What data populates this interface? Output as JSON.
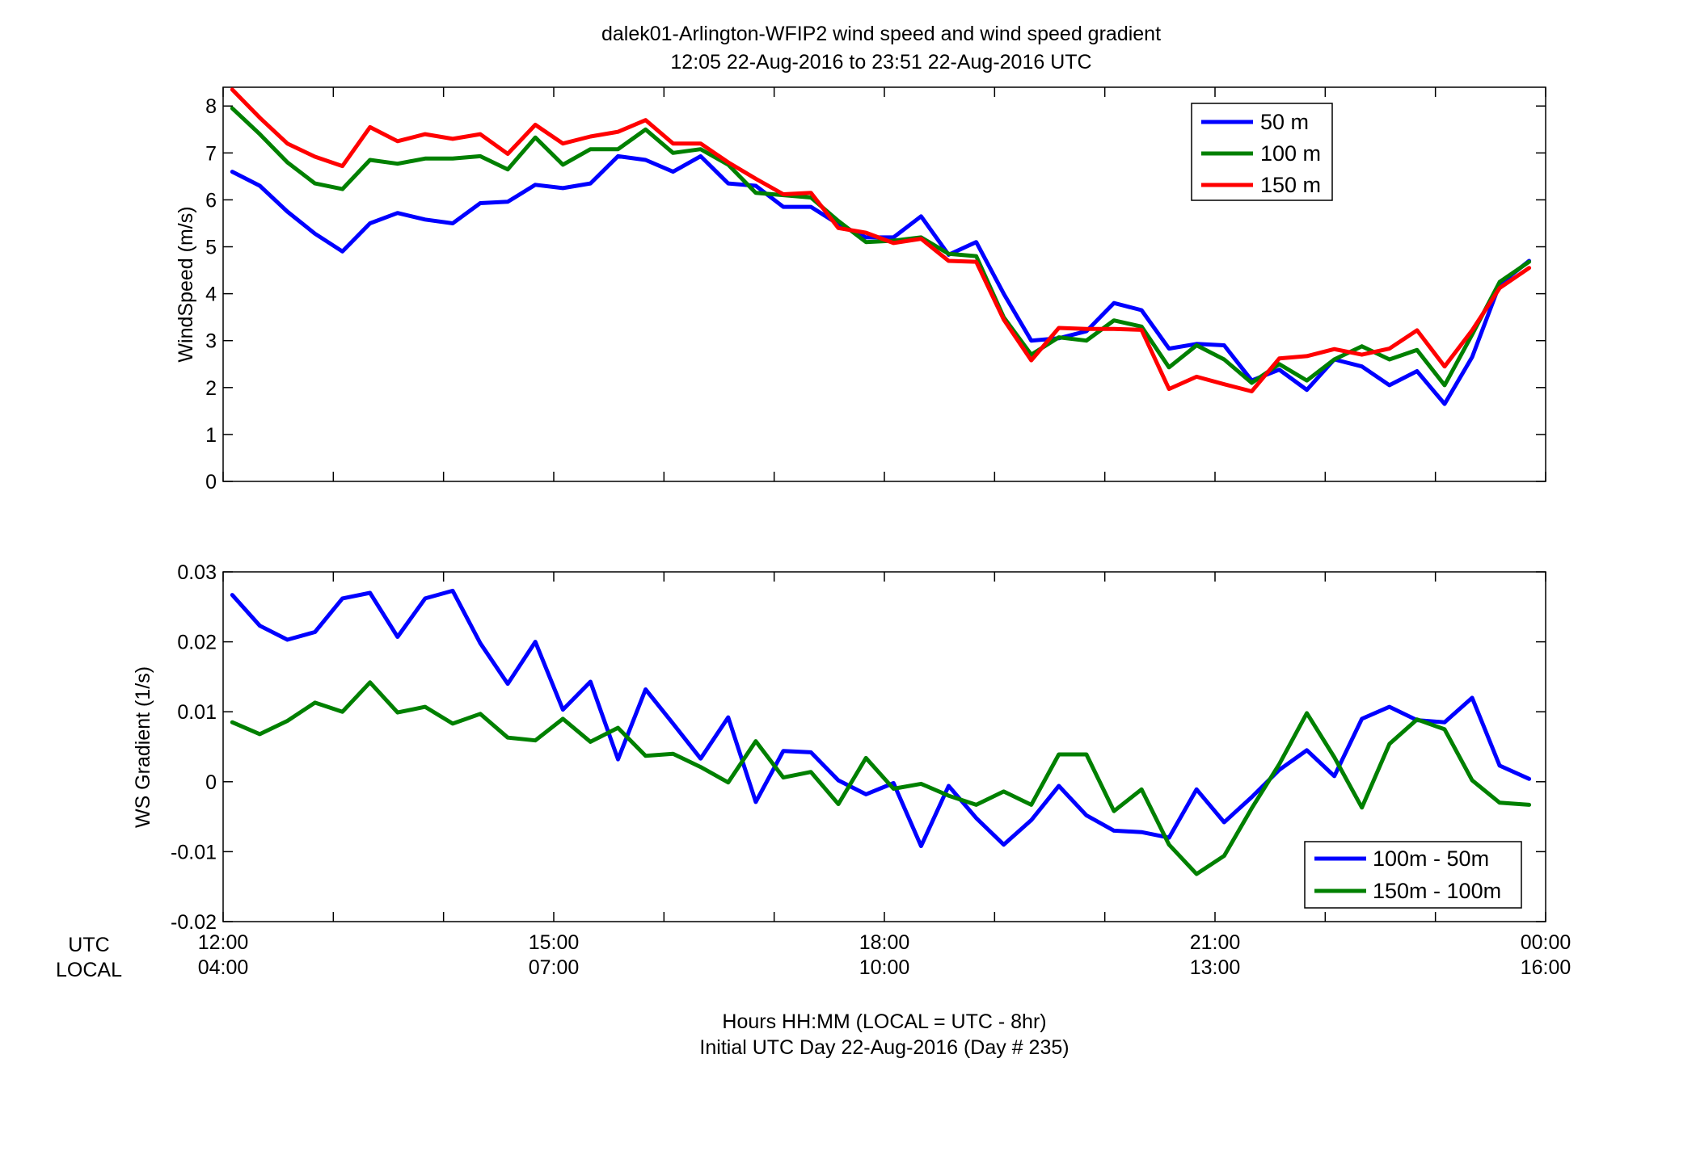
{
  "figure": {
    "title_line1": "dalek01-Arlington-WFIP2  wind speed and wind speed gradient",
    "title_line2": "12:05 22-Aug-2016 to 23:51 22-Aug-2016  UTC",
    "time_row_labels": [
      "UTC",
      "LOCAL"
    ],
    "xlabel_line1": "Hours HH:MM  (LOCAL = UTC - 8hr)",
    "xlabel_line2": "Initial UTC Day 22-Aug-2016 (Day # 235)",
    "utc_ticks": [
      "12:00",
      "15:00",
      "18:00",
      "21:00",
      "00:00"
    ],
    "local_ticks": [
      "04:00",
      "07:00",
      "10:00",
      "13:00",
      "16:00"
    ]
  },
  "chart_data": [
    {
      "type": "line",
      "ylabel": "WindSpeed (m/s)",
      "xlim": [
        12.0,
        24.0
      ],
      "ylim": [
        0,
        8.4
      ],
      "yticks": [
        "0",
        "1",
        "2",
        "3",
        "4",
        "5",
        "6",
        "7",
        "8"
      ],
      "ytick_values": [
        0,
        1,
        2,
        3,
        4,
        5,
        6,
        7,
        8
      ],
      "grid": false,
      "legend_position": "top-right",
      "x": [
        12.083,
        12.333,
        12.583,
        12.833,
        13.083,
        13.333,
        13.583,
        13.833,
        14.083,
        14.333,
        14.583,
        14.833,
        15.083,
        15.333,
        15.583,
        15.833,
        16.083,
        16.333,
        16.583,
        16.833,
        17.083,
        17.333,
        17.583,
        17.833,
        18.083,
        18.333,
        18.583,
        18.833,
        19.083,
        19.333,
        19.583,
        19.833,
        20.083,
        20.333,
        20.583,
        20.833,
        21.083,
        21.333,
        21.583,
        21.833,
        22.083,
        22.333,
        22.583,
        22.833,
        23.083,
        23.333,
        23.583,
        23.85
      ],
      "series": [
        {
          "name": "50 m",
          "color": "#0000ff",
          "values": [
            6.6,
            6.3,
            5.75,
            5.28,
            4.9,
            5.5,
            5.72,
            5.58,
            5.5,
            5.93,
            5.96,
            6.32,
            6.25,
            6.35,
            6.93,
            6.85,
            6.6,
            6.93,
            6.35,
            6.3,
            5.85,
            5.85,
            5.48,
            5.2,
            5.2,
            5.65,
            4.83,
            5.1,
            4.0,
            3.0,
            3.05,
            3.2,
            3.8,
            3.65,
            2.83,
            2.93,
            2.9,
            2.15,
            2.38,
            1.95,
            2.6,
            2.45,
            2.05,
            2.35,
            1.65,
            2.65,
            4.2,
            4.7
          ]
        },
        {
          "name": "100 m",
          "color": "#008000",
          "values": [
            7.95,
            7.4,
            6.8,
            6.35,
            6.23,
            6.85,
            6.77,
            6.88,
            6.88,
            6.93,
            6.65,
            7.33,
            6.75,
            7.08,
            7.08,
            7.5,
            7.0,
            7.08,
            6.75,
            6.15,
            6.1,
            6.05,
            5.55,
            5.1,
            5.13,
            5.2,
            4.85,
            4.8,
            3.5,
            2.7,
            3.07,
            3.0,
            3.43,
            3.3,
            2.43,
            2.9,
            2.6,
            2.1,
            2.5,
            2.15,
            2.6,
            2.88,
            2.6,
            2.8,
            2.05,
            3.13,
            4.25,
            4.68
          ]
        },
        {
          "name": "150 m",
          "color": "#ff0000",
          "values": [
            8.35,
            7.75,
            7.2,
            6.92,
            6.72,
            7.55,
            7.25,
            7.4,
            7.3,
            7.4,
            6.98,
            7.6,
            7.2,
            7.35,
            7.45,
            7.7,
            7.2,
            7.2,
            6.8,
            6.45,
            6.12,
            6.15,
            5.4,
            5.3,
            5.08,
            5.17,
            4.7,
            4.68,
            3.45,
            2.58,
            3.27,
            3.25,
            3.25,
            3.23,
            1.97,
            2.23,
            2.07,
            1.92,
            2.62,
            2.67,
            2.82,
            2.7,
            2.83,
            3.22,
            2.45,
            3.22,
            4.12,
            4.55
          ]
        }
      ]
    },
    {
      "type": "line",
      "ylabel": "WS Gradient (1/s)",
      "xlim": [
        12.0,
        24.0
      ],
      "ylim": [
        -0.02,
        0.03
      ],
      "yticks": [
        "-0.02",
        "-0.01",
        "0",
        "0.01",
        "0.02",
        "0.03"
      ],
      "ytick_values": [
        -0.02,
        -0.01,
        0,
        0.01,
        0.02,
        0.03
      ],
      "grid": false,
      "legend_position": "bottom-right",
      "x": [
        12.083,
        12.333,
        12.583,
        12.833,
        13.083,
        13.333,
        13.583,
        13.833,
        14.083,
        14.333,
        14.583,
        14.833,
        15.083,
        15.333,
        15.583,
        15.833,
        16.083,
        16.333,
        16.583,
        16.833,
        17.083,
        17.333,
        17.583,
        17.833,
        18.083,
        18.333,
        18.583,
        18.833,
        19.083,
        19.333,
        19.583,
        19.833,
        20.083,
        20.333,
        20.583,
        20.833,
        21.083,
        21.333,
        21.583,
        21.833,
        22.083,
        22.333,
        22.583,
        22.833,
        23.083,
        23.333,
        23.583,
        23.85
      ],
      "series": [
        {
          "name": "100m - 50m",
          "color": "#0000ff",
          "values": [
            0.0267,
            0.0223,
            0.0203,
            0.0214,
            0.0262,
            0.027,
            0.0207,
            0.0262,
            0.0273,
            0.0198,
            0.014,
            0.02,
            0.0103,
            0.0143,
            0.0032,
            0.0132,
            0.0083,
            0.0033,
            0.0092,
            -0.0029,
            0.0044,
            0.0042,
            0.0002,
            -0.0018,
            -0.0002,
            -0.0092,
            -0.0006,
            -0.0052,
            -0.009,
            -0.0055,
            -0.0006,
            -0.0048,
            -0.007,
            -0.0072,
            -0.008,
            -0.0011,
            -0.0058,
            -0.0022,
            0.0017,
            0.0045,
            0.0008,
            0.009,
            0.0107,
            0.0088,
            0.0085,
            0.012,
            0.0023,
            0.0004
          ]
        },
        {
          "name": "150m - 100m",
          "color": "#008000",
          "values": [
            0.0085,
            0.0068,
            0.0087,
            0.0113,
            0.01,
            0.0142,
            0.0099,
            0.0107,
            0.0083,
            0.0097,
            0.0063,
            0.0059,
            0.009,
            0.0057,
            0.0077,
            0.0037,
            0.004,
            0.0021,
            -0.0001,
            0.0058,
            0.0006,
            0.0014,
            -0.0032,
            0.0034,
            -0.001,
            -0.0003,
            -0.002,
            -0.0033,
            -0.0014,
            -0.0033,
            0.0039,
            0.0039,
            -0.0042,
            -0.0011,
            -0.009,
            -0.0132,
            -0.0106,
            -0.0038,
            0.0025,
            0.0098,
            0.0035,
            -0.0037,
            0.0054,
            0.0089,
            0.0075,
            0.0002,
            -0.003,
            -0.0033
          ]
        }
      ]
    }
  ]
}
